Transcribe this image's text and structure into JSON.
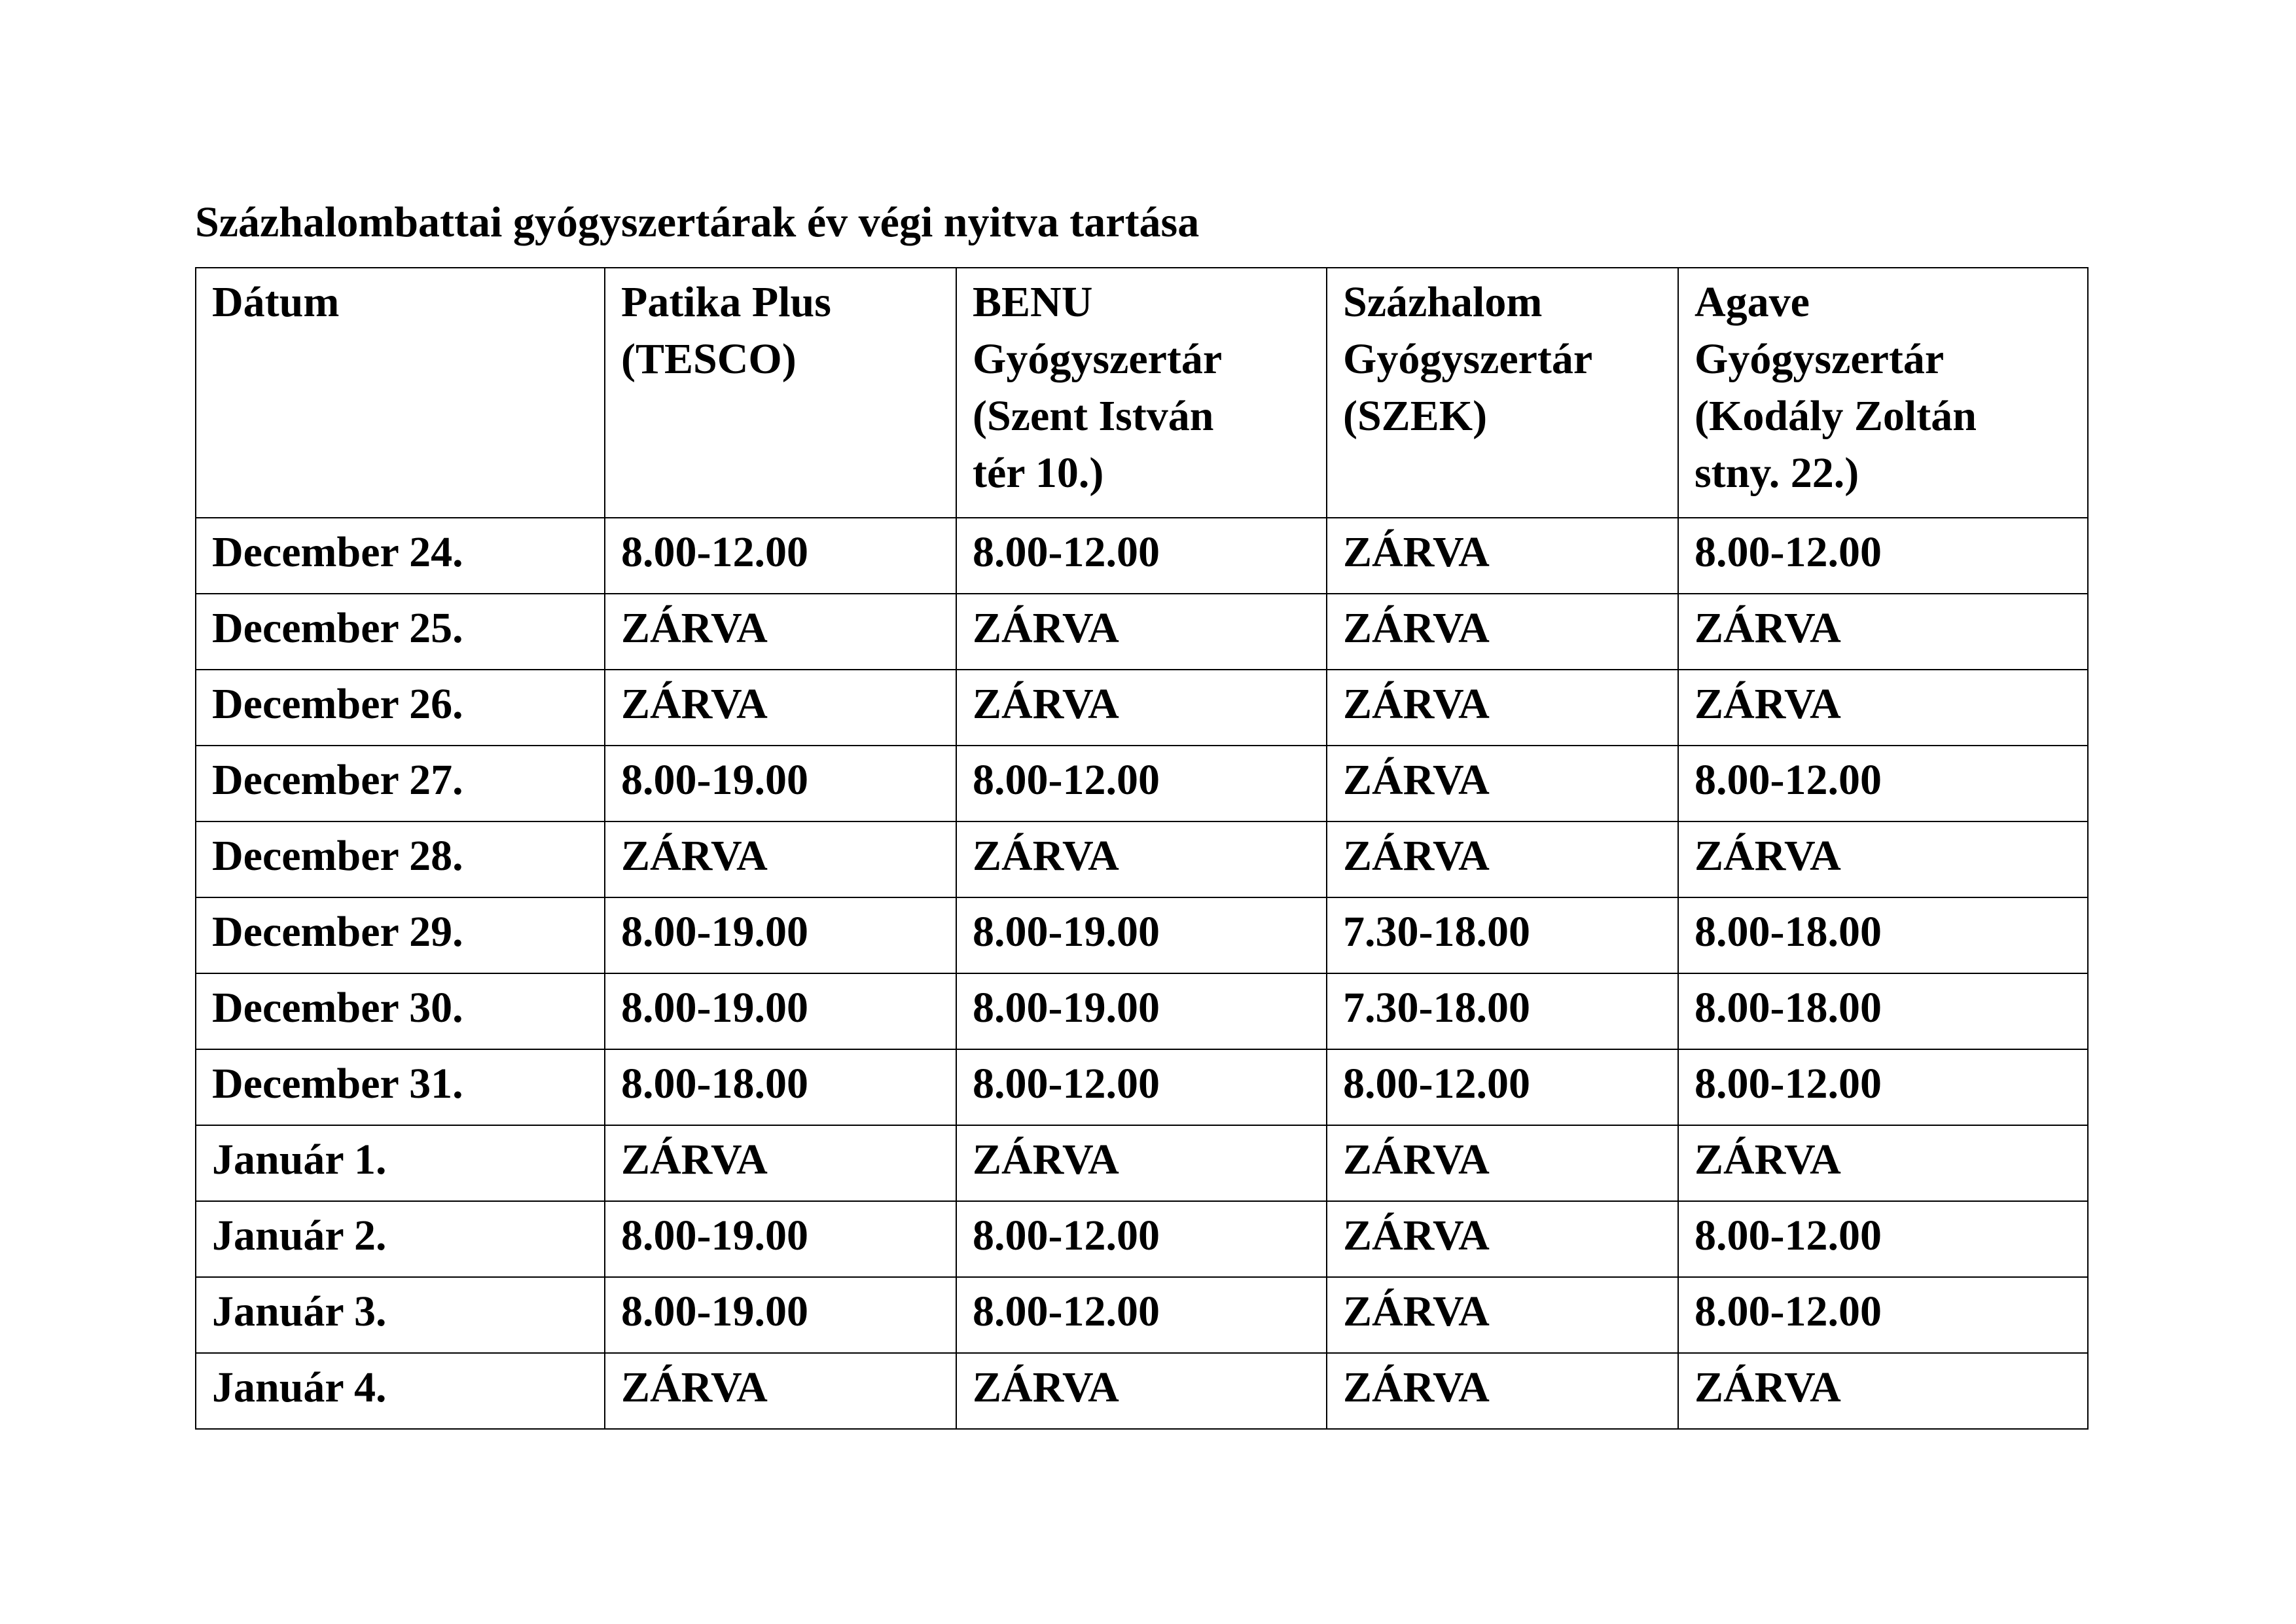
{
  "title": "Százhalombattai gyógyszertárak év végi nyitva tartása",
  "table": {
    "headers": [
      [
        "Dátum"
      ],
      [
        "Patika Plus",
        "(TESCO)"
      ],
      [
        "BENU",
        "Gyógyszertár",
        "(Szent  István",
        "tér 10.)"
      ],
      [
        "Százhalom",
        "Gyógyszertár",
        "(SZEK)"
      ],
      [
        "Agave",
        "Gyógyszertár",
        "(Kodály Zoltán",
        "stny. 22.)"
      ]
    ],
    "rows": [
      [
        "December 24.",
        "8.00-12.00",
        "8.00-12.00",
        "ZÁRVA",
        "8.00-12.00"
      ],
      [
        "December 25.",
        "ZÁRVA",
        "ZÁRVA",
        "ZÁRVA",
        "ZÁRVA"
      ],
      [
        "December 26.",
        "ZÁRVA",
        "ZÁRVA",
        "ZÁRVA",
        "ZÁRVA"
      ],
      [
        "December 27.",
        "8.00-19.00",
        "8.00-12.00",
        "ZÁRVA",
        "8.00-12.00"
      ],
      [
        "December 28.",
        "ZÁRVA",
        "ZÁRVA",
        "ZÁRVA",
        "ZÁRVA"
      ],
      [
        "December 29.",
        "8.00-19.00",
        "8.00-19.00",
        "7.30-18.00",
        "8.00-18.00"
      ],
      [
        "December 30.",
        "8.00-19.00",
        "8.00-19.00",
        "7.30-18.00",
        "8.00-18.00"
      ],
      [
        "December 31.",
        "8.00-18.00",
        "8.00-12.00",
        "8.00-12.00",
        "8.00-12.00"
      ],
      [
        "Január 1.",
        "ZÁRVA",
        "ZÁRVA",
        "ZÁRVA",
        "ZÁRVA"
      ],
      [
        "Január 2.",
        "8.00-19.00",
        "8.00-12.00",
        "ZÁRVA",
        "8.00-12.00"
      ],
      [
        "Január 3.",
        "8.00-19.00",
        "8.00-12.00",
        "ZÁRVA",
        "8.00-12.00"
      ],
      [
        "Január 4.",
        "ZÁRVA",
        "ZÁRVA",
        "ZÁRVA",
        "ZÁRVA"
      ]
    ]
  }
}
